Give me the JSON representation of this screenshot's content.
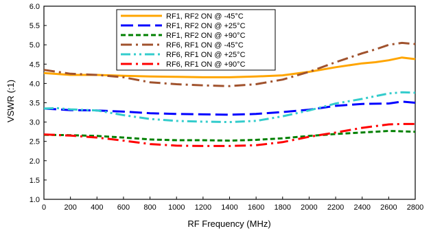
{
  "chart_data": {
    "type": "line",
    "title": "",
    "xlabel": "RF Frequency (MHz)",
    "ylabel": "VSWR (:1)",
    "xlim": [
      0,
      2800
    ],
    "ylim": [
      1.0,
      6.0
    ],
    "xticks": [
      "0",
      "200",
      "400",
      "600",
      "800",
      "1000",
      "1200",
      "1400",
      "1600",
      "1800",
      "2000",
      "2200",
      "2400",
      "2600",
      "2800"
    ],
    "yticks": [
      "1.0",
      "1.5",
      "2.0",
      "2.5",
      "3.0",
      "3.5",
      "4.0",
      "4.5",
      "5.0",
      "5.5",
      "6.0"
    ],
    "grid": false,
    "legend_position": "top-center",
    "series": [
      {
        "name": "RF1, RF2 ON @ -45°C",
        "color": "#FFA500",
        "dash": "solid",
        "x": [
          0,
          200,
          400,
          600,
          800,
          1000,
          1200,
          1400,
          1600,
          1800,
          2000,
          2200,
          2400,
          2500,
          2600,
          2700,
          2800
        ],
        "y": [
          4.27,
          4.22,
          4.22,
          4.2,
          4.18,
          4.17,
          4.16,
          4.16,
          4.18,
          4.21,
          4.3,
          4.42,
          4.52,
          4.55,
          4.6,
          4.67,
          4.63
        ]
      },
      {
        "name": "RF1, RF2 ON @ +25°C",
        "color": "#0000FF",
        "dash": "long-dash",
        "x": [
          0,
          200,
          400,
          600,
          800,
          1000,
          1200,
          1400,
          1600,
          1800,
          2000,
          2200,
          2400,
          2600,
          2700,
          2800
        ],
        "y": [
          3.35,
          3.31,
          3.3,
          3.27,
          3.23,
          3.21,
          3.2,
          3.19,
          3.21,
          3.26,
          3.32,
          3.42,
          3.47,
          3.48,
          3.53,
          3.5
        ]
      },
      {
        "name": "RF1, RF2 ON @ +90°C",
        "color": "#008000",
        "dash": "short-dash",
        "x": [
          0,
          200,
          400,
          600,
          800,
          1000,
          1200,
          1400,
          1600,
          1800,
          2000,
          2200,
          2400,
          2600,
          2700,
          2800
        ],
        "y": [
          2.67,
          2.66,
          2.64,
          2.6,
          2.55,
          2.53,
          2.53,
          2.52,
          2.54,
          2.58,
          2.64,
          2.69,
          2.73,
          2.77,
          2.76,
          2.75
        ]
      },
      {
        "name": "RF6, RF1 ON @ -45°C",
        "color": "#A0522D",
        "dash": "dash-dot",
        "x": [
          0,
          100,
          200,
          400,
          600,
          800,
          1000,
          1200,
          1400,
          1600,
          1800,
          2000,
          2200,
          2400,
          2500,
          2600,
          2700,
          2800
        ],
        "y": [
          4.35,
          4.3,
          4.25,
          4.22,
          4.16,
          4.03,
          3.98,
          3.95,
          3.93,
          3.98,
          4.1,
          4.3,
          4.55,
          4.78,
          4.88,
          5.0,
          5.05,
          5.02
        ]
      },
      {
        "name": "RF6, RF1 ON @ +25°C",
        "color": "#33CCCC",
        "dash": "dash-dot-dot",
        "x": [
          0,
          100,
          200,
          400,
          600,
          800,
          1000,
          1200,
          1400,
          1600,
          1800,
          2000,
          2200,
          2400,
          2500,
          2600,
          2700,
          2800
        ],
        "y": [
          3.35,
          3.36,
          3.33,
          3.3,
          3.18,
          3.08,
          3.03,
          3.01,
          3.0,
          3.03,
          3.15,
          3.3,
          3.48,
          3.6,
          3.67,
          3.74,
          3.77,
          3.76
        ]
      },
      {
        "name": "RF6, RF1 ON @ +90°C",
        "color": "#FF0000",
        "dash": "dash-dot",
        "x": [
          0,
          200,
          400,
          600,
          800,
          1000,
          1200,
          1400,
          1600,
          1800,
          2000,
          2200,
          2400,
          2600,
          2700,
          2800
        ],
        "y": [
          2.68,
          2.65,
          2.6,
          2.52,
          2.43,
          2.39,
          2.38,
          2.38,
          2.4,
          2.48,
          2.62,
          2.73,
          2.85,
          2.94,
          2.95,
          2.95
        ]
      }
    ]
  }
}
